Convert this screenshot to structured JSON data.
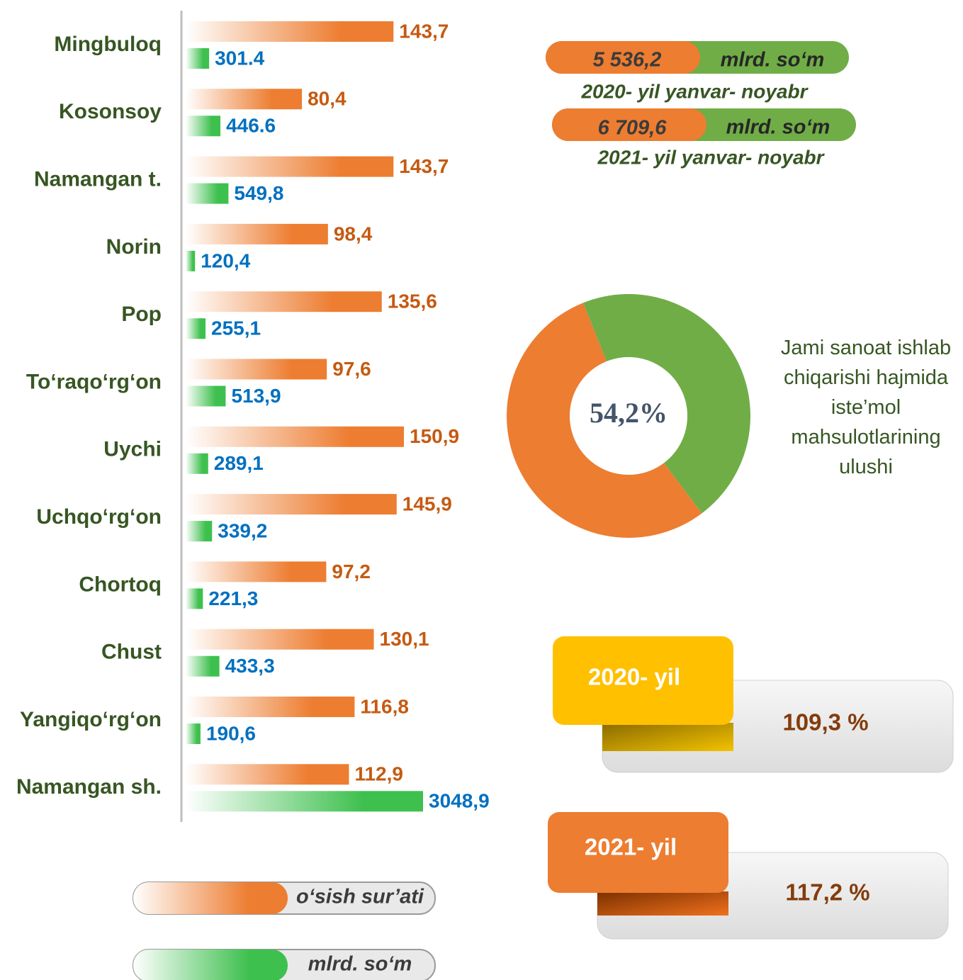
{
  "chart_data": [
    {
      "type": "bar",
      "orientation": "horizontal",
      "categories": [
        "Mingbuloq",
        "Kosonsoy",
        "Namangan t.",
        "Norin",
        "Pop",
        "To‘raqo‘rg‘on",
        "Uychi",
        "Uchqo‘rg‘on",
        "Chortoq",
        "Chust",
        "Yangiqo‘rg‘on",
        "Namangan sh."
      ],
      "series": [
        {
          "name": "o‘sish sur’ati",
          "color": "#ED7D31",
          "values": [
            143.7,
            80.4,
            143.7,
            98.4,
            135.6,
            97.6,
            150.9,
            145.9,
            97.2,
            130.1,
            116.8,
            112.9
          ],
          "value_labels": [
            "143,7",
            "80,4",
            "143,7",
            "98,4",
            "135,6",
            "97,6",
            "150,9",
            "145,9",
            "97,2",
            "130,1",
            "116,8",
            "112,9"
          ]
        },
        {
          "name": "mlrd. so‘m",
          "color": "#3EC04E",
          "values": [
            301.4,
            446.6,
            549.8,
            120.4,
            255.1,
            513.9,
            289.1,
            339.2,
            221.3,
            433.3,
            190.6,
            3048.9
          ],
          "value_labels": [
            "301.4",
            "446.6",
            "549,8",
            "120,4",
            "255,1",
            "513,9",
            "289,1",
            "339,2",
            "221,3",
            "433,3",
            "190,6",
            "3048,9"
          ]
        }
      ]
    },
    {
      "type": "pie",
      "donut": true,
      "values": [
        54.2,
        45.8
      ],
      "colors": [
        "#ED7D31",
        "#70AD47"
      ],
      "value_labels": [
        "54,2%"
      ],
      "caption": "Jami sanoat ishlab chiqarishi hajmida iste’mol mahsulotlarining ulushi"
    }
  ],
  "summary": [
    {
      "value": 5536.2,
      "label": "5 536,2",
      "unit": "mlrd. so‘m",
      "period": "2020- yil yanvar- noyabr"
    },
    {
      "value": 6709.6,
      "label": "6 709,6",
      "unit": "mlrd. so‘m",
      "period": "2021- yil yanvar- noyabr"
    }
  ],
  "growth": [
    {
      "year": "2020- yil",
      "value": "109,3 %"
    },
    {
      "year": "2021- yil",
      "value": "117,2 %"
    }
  ]
}
